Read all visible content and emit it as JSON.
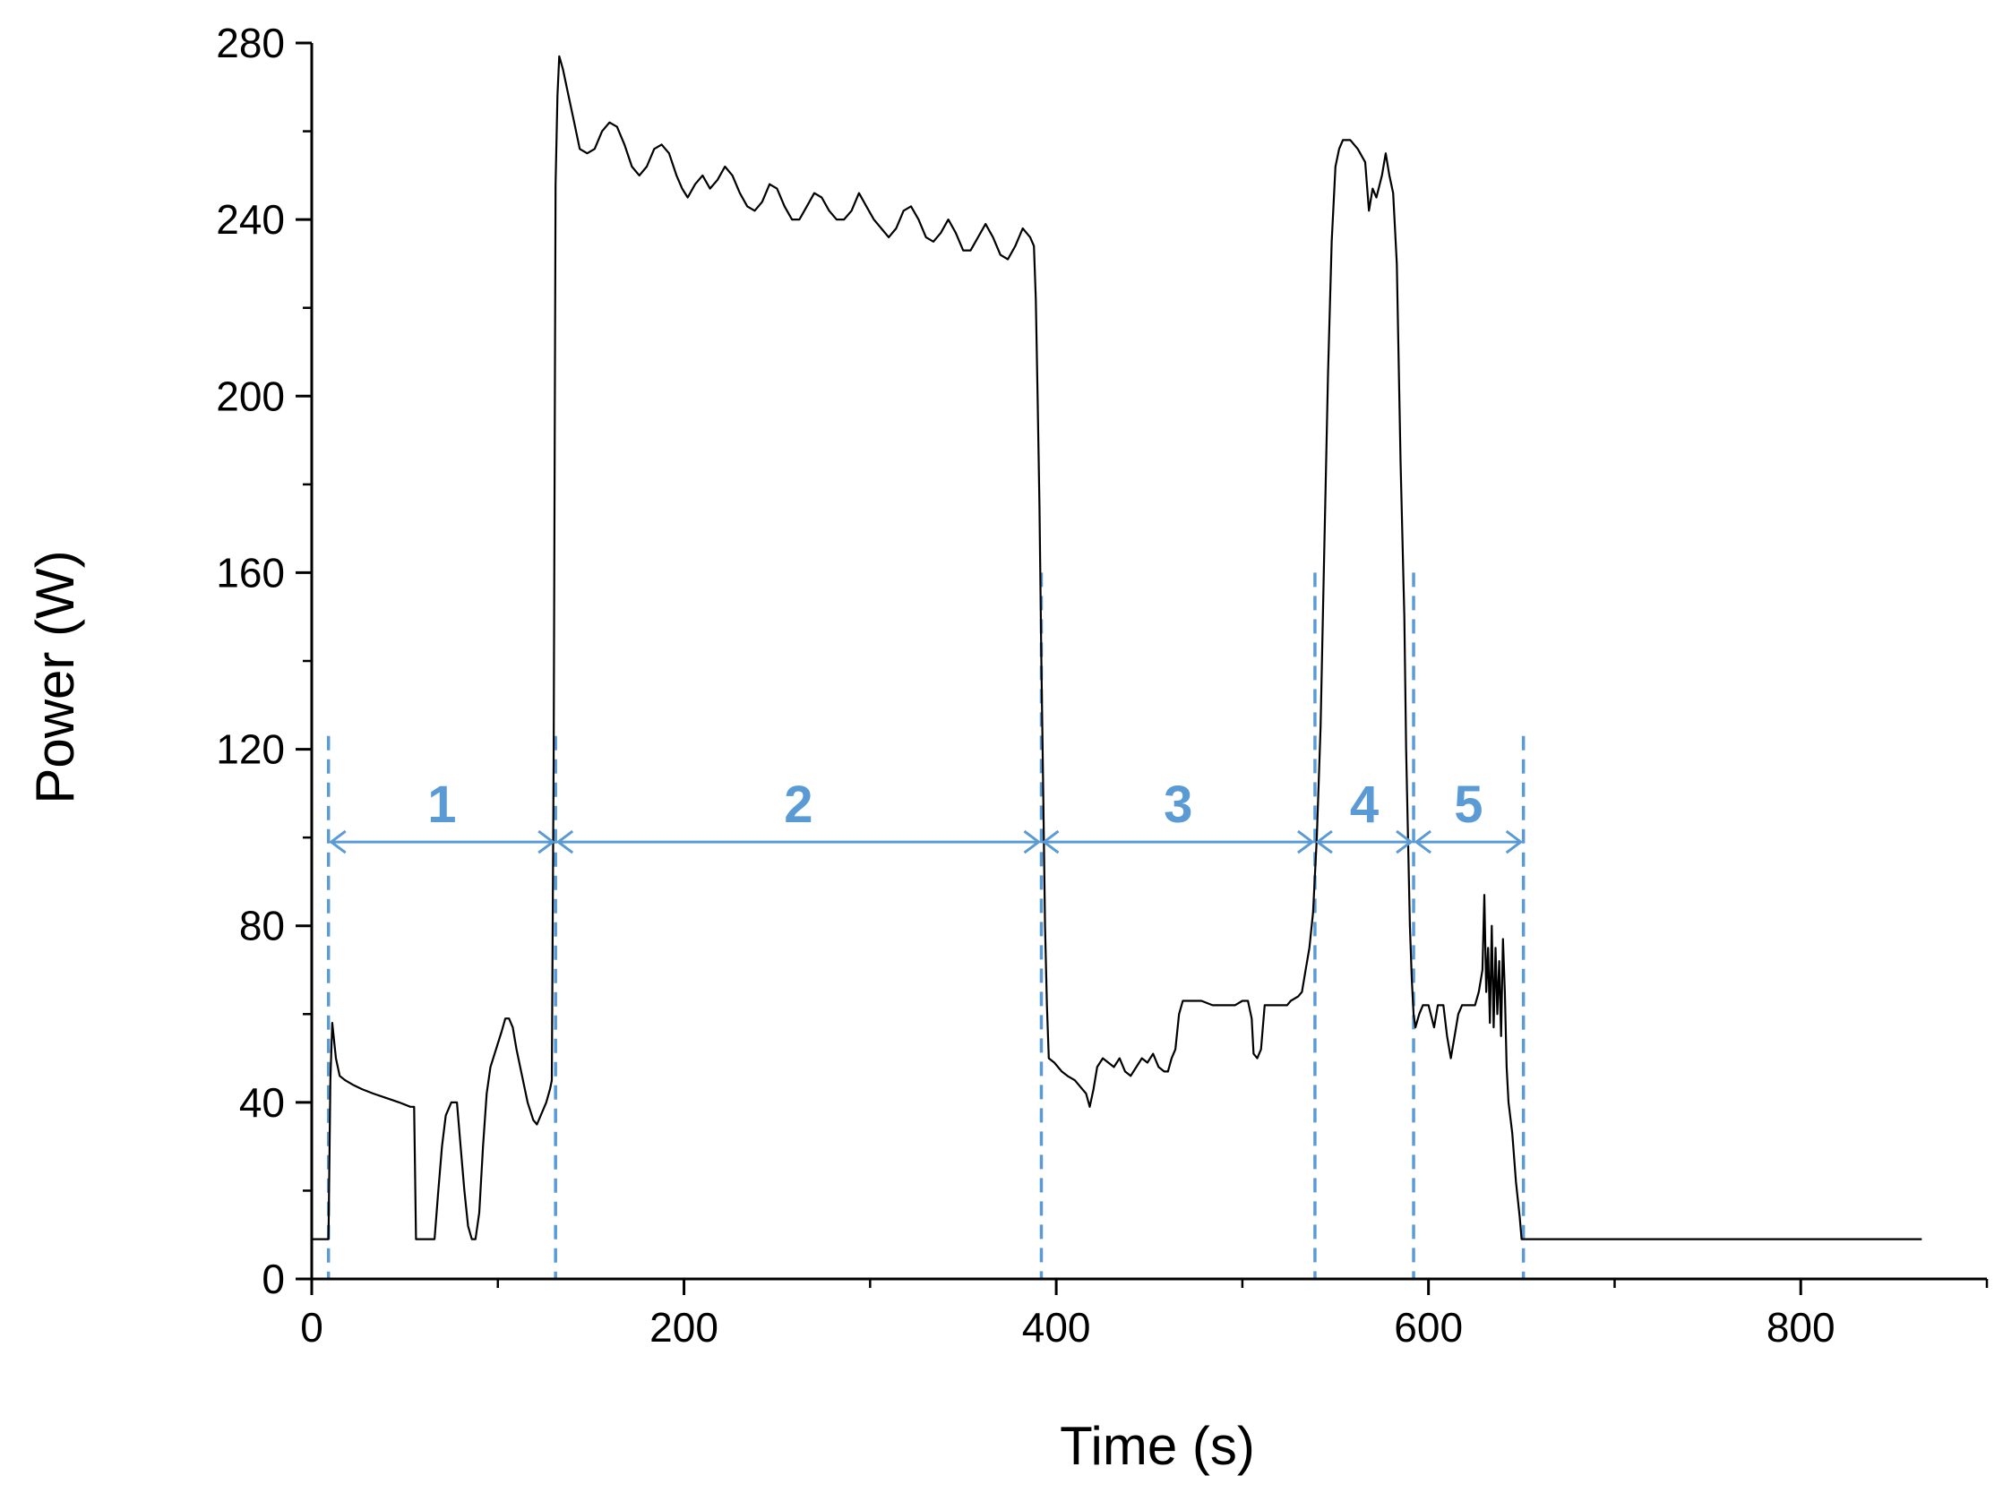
{
  "chart_data": {
    "type": "line",
    "title": "",
    "xlabel": "Time (s)",
    "ylabel": "Power (W)",
    "xlim": [
      0,
      900
    ],
    "ylim": [
      0,
      280
    ],
    "x_ticks": [
      0,
      200,
      400,
      600,
      800
    ],
    "y_ticks": [
      0,
      40,
      80,
      120,
      160,
      200,
      240,
      280
    ],
    "x_tick_labels": [
      "0",
      "200",
      "400",
      "600",
      "800"
    ],
    "y_tick_labels": [
      "0",
      "40",
      "80",
      "120",
      "160",
      "200",
      "240",
      "280"
    ],
    "grid": false,
    "legend": "none",
    "line_color": "#000000",
    "annotation_color": "#5b9bd5",
    "series": [
      {
        "points": [
          [
            0,
            9
          ],
          [
            9,
            9
          ],
          [
            10,
            45
          ],
          [
            11,
            58
          ],
          [
            13,
            50
          ],
          [
            15,
            46
          ],
          [
            18,
            45
          ],
          [
            22,
            44
          ],
          [
            27,
            43
          ],
          [
            33,
            42
          ],
          [
            40,
            41
          ],
          [
            47,
            40
          ],
          [
            53,
            39
          ],
          [
            55,
            39
          ],
          [
            56,
            9
          ],
          [
            60,
            9
          ],
          [
            66,
            9
          ],
          [
            68,
            20
          ],
          [
            70,
            30
          ],
          [
            72,
            37
          ],
          [
            75,
            40
          ],
          [
            78,
            40
          ],
          [
            80,
            30
          ],
          [
            82,
            20
          ],
          [
            84,
            12
          ],
          [
            86,
            9
          ],
          [
            88,
            9
          ],
          [
            90,
            15
          ],
          [
            92,
            30
          ],
          [
            94,
            42
          ],
          [
            96,
            48
          ],
          [
            99,
            52
          ],
          [
            102,
            56
          ],
          [
            104,
            59
          ],
          [
            106,
            59
          ],
          [
            108,
            57
          ],
          [
            110,
            52
          ],
          [
            113,
            46
          ],
          [
            116,
            40
          ],
          [
            119,
            36
          ],
          [
            121,
            35
          ],
          [
            123,
            37
          ],
          [
            126,
            40
          ],
          [
            128,
            43
          ],
          [
            129,
            45
          ],
          [
            130,
            120
          ],
          [
            131,
            248
          ],
          [
            132,
            268
          ],
          [
            133,
            277
          ],
          [
            135,
            274
          ],
          [
            138,
            268
          ],
          [
            141,
            262
          ],
          [
            144,
            256
          ],
          [
            148,
            255
          ],
          [
            152,
            256
          ],
          [
            156,
            260
          ],
          [
            160,
            262
          ],
          [
            164,
            261
          ],
          [
            168,
            257
          ],
          [
            172,
            252
          ],
          [
            176,
            250
          ],
          [
            180,
            252
          ],
          [
            184,
            256
          ],
          [
            188,
            257
          ],
          [
            192,
            255
          ],
          [
            196,
            250
          ],
          [
            199,
            247
          ],
          [
            202,
            245
          ],
          [
            206,
            248
          ],
          [
            210,
            250
          ],
          [
            214,
            247
          ],
          [
            218,
            249
          ],
          [
            222,
            252
          ],
          [
            226,
            250
          ],
          [
            230,
            246
          ],
          [
            234,
            243
          ],
          [
            238,
            242
          ],
          [
            242,
            244
          ],
          [
            246,
            248
          ],
          [
            250,
            247
          ],
          [
            254,
            243
          ],
          [
            258,
            240
          ],
          [
            262,
            240
          ],
          [
            266,
            243
          ],
          [
            270,
            246
          ],
          [
            274,
            245
          ],
          [
            278,
            242
          ],
          [
            282,
            240
          ],
          [
            286,
            240
          ],
          [
            290,
            242
          ],
          [
            294,
            246
          ],
          [
            298,
            243
          ],
          [
            302,
            240
          ],
          [
            306,
            238
          ],
          [
            310,
            236
          ],
          [
            314,
            238
          ],
          [
            318,
            242
          ],
          [
            322,
            243
          ],
          [
            326,
            240
          ],
          [
            330,
            236
          ],
          [
            334,
            235
          ],
          [
            338,
            237
          ],
          [
            342,
            240
          ],
          [
            346,
            237
          ],
          [
            350,
            233
          ],
          [
            354,
            233
          ],
          [
            358,
            236
          ],
          [
            362,
            239
          ],
          [
            366,
            236
          ],
          [
            370,
            232
          ],
          [
            374,
            231
          ],
          [
            378,
            234
          ],
          [
            382,
            238
          ],
          [
            386,
            236
          ],
          [
            388,
            234
          ],
          [
            389,
            222
          ],
          [
            390,
            200
          ],
          [
            391,
            175
          ],
          [
            392,
            140
          ],
          [
            393,
            110
          ],
          [
            394,
            80
          ],
          [
            395,
            62
          ],
          [
            396,
            50
          ],
          [
            399,
            49
          ],
          [
            403,
            47
          ],
          [
            406,
            46
          ],
          [
            410,
            45
          ],
          [
            412,
            44
          ],
          [
            414,
            43
          ],
          [
            416,
            42
          ],
          [
            418,
            39
          ],
          [
            420,
            43
          ],
          [
            422,
            48
          ],
          [
            425,
            50
          ],
          [
            428,
            49
          ],
          [
            431,
            48
          ],
          [
            434,
            50
          ],
          [
            437,
            47
          ],
          [
            440,
            46
          ],
          [
            443,
            48
          ],
          [
            446,
            50
          ],
          [
            449,
            49
          ],
          [
            452,
            51
          ],
          [
            455,
            48
          ],
          [
            458,
            47
          ],
          [
            460,
            47
          ],
          [
            462,
            50
          ],
          [
            464,
            52
          ],
          [
            466,
            60
          ],
          [
            468,
            63
          ],
          [
            472,
            63
          ],
          [
            478,
            63
          ],
          [
            484,
            62
          ],
          [
            490,
            62
          ],
          [
            496,
            62
          ],
          [
            500,
            63
          ],
          [
            503,
            63
          ],
          [
            505,
            59
          ],
          [
            506,
            51
          ],
          [
            508,
            50
          ],
          [
            510,
            52
          ],
          [
            512,
            62
          ],
          [
            516,
            62
          ],
          [
            520,
            62
          ],
          [
            524,
            62
          ],
          [
            526,
            63
          ],
          [
            530,
            64
          ],
          [
            532,
            65
          ],
          [
            534,
            70
          ],
          [
            536,
            75
          ],
          [
            538,
            83
          ],
          [
            540,
            100
          ],
          [
            542,
            125
          ],
          [
            544,
            165
          ],
          [
            546,
            205
          ],
          [
            548,
            235
          ],
          [
            550,
            252
          ],
          [
            552,
            256
          ],
          [
            554,
            258
          ],
          [
            558,
            258
          ],
          [
            562,
            256
          ],
          [
            566,
            253
          ],
          [
            568,
            242
          ],
          [
            570,
            247
          ],
          [
            572,
            245
          ],
          [
            575,
            250
          ],
          [
            577,
            255
          ],
          [
            579,
            250
          ],
          [
            581,
            246
          ],
          [
            583,
            230
          ],
          [
            585,
            185
          ],
          [
            587,
            150
          ],
          [
            588,
            120
          ],
          [
            589,
            100
          ],
          [
            590,
            80
          ],
          [
            591,
            68
          ],
          [
            592,
            60
          ],
          [
            593,
            57
          ],
          [
            595,
            60
          ],
          [
            597,
            62
          ],
          [
            600,
            62
          ],
          [
            603,
            57
          ],
          [
            605,
            62
          ],
          [
            608,
            62
          ],
          [
            610,
            55
          ],
          [
            612,
            50
          ],
          [
            614,
            55
          ],
          [
            616,
            60
          ],
          [
            618,
            62
          ],
          [
            622,
            62
          ],
          [
            625,
            62
          ],
          [
            627,
            65
          ],
          [
            629,
            70
          ],
          [
            630,
            87
          ],
          [
            631,
            65
          ],
          [
            632,
            75
          ],
          [
            633,
            58
          ],
          [
            634,
            80
          ],
          [
            635,
            57
          ],
          [
            636,
            75
          ],
          [
            637,
            60
          ],
          [
            638,
            72
          ],
          [
            639,
            55
          ],
          [
            640,
            77
          ],
          [
            641,
            65
          ],
          [
            642,
            48
          ],
          [
            643,
            40
          ],
          [
            645,
            33
          ],
          [
            647,
            22
          ],
          [
            649,
            14
          ],
          [
            650,
            9
          ],
          [
            660,
            9
          ],
          [
            700,
            9
          ],
          [
            750,
            9
          ],
          [
            800,
            9
          ],
          [
            850,
            9
          ],
          [
            865,
            9
          ]
        ]
      }
    ],
    "phases": [
      {
        "label": "1",
        "start": 9,
        "end": 131
      },
      {
        "label": "2",
        "start": 131,
        "end": 392
      },
      {
        "label": "3",
        "start": 392,
        "end": 539
      },
      {
        "label": "4",
        "start": 539,
        "end": 592
      },
      {
        "label": "5",
        "start": 592,
        "end": 651
      }
    ],
    "phase_boundary_lines": [
      {
        "x": 9,
        "top": 123
      },
      {
        "x": 131,
        "top": 123
      },
      {
        "x": 392,
        "top": 160
      },
      {
        "x": 539,
        "top": 160
      },
      {
        "x": 592,
        "top": 160
      },
      {
        "x": 651,
        "top": 123
      }
    ],
    "phase_arrow_y": 99
  }
}
